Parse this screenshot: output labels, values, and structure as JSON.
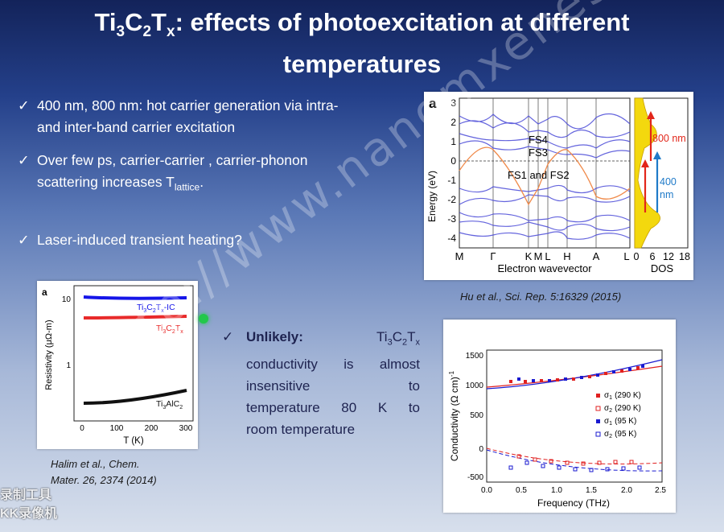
{
  "slide": {
    "title_prefix": "Ti",
    "title_sub1": "3",
    "title_c": "C",
    "title_sub2": "2",
    "title_t": "T",
    "title_sub3": "x",
    "title_rest": ": effects of photoexcitation at different",
    "title_line2": "temperatures"
  },
  "bullets": [
    {
      "check": "✓",
      "line1": "400 nm, 800 nm: hot carrier generation via intra-",
      "line2": "and inter-band carrier excitation"
    },
    {
      "check": "✓",
      "line1": "Over few ps, carrier-carrier , carrier-phonon",
      "line2": "scattering increases T",
      "line2_sub": "lattice",
      "line2_end": "."
    },
    {
      "check": "✓",
      "line1": "Laser-induced transient heating?"
    }
  ],
  "band_panel": {
    "label": "a",
    "y_ticks": [
      "3",
      "2",
      "1",
      "0",
      "-1",
      "-2",
      "-3",
      "-4"
    ],
    "y_label": "Energy (eV)",
    "x_ticks": [
      "M",
      "Γ",
      "K",
      "M",
      "L",
      "H",
      "A",
      "L"
    ],
    "x_label": "Electron wavevector",
    "annotations": [
      "FS4",
      "FS3",
      "FS1 and FS2"
    ],
    "dos_ticks": [
      "0",
      "6",
      "12",
      "18"
    ],
    "dos_label": "DOS",
    "arrow_800": "800 nm",
    "arrow_400a": "400",
    "arrow_400b": "nm",
    "citation": "Hu et al., Sci. Rep. 5:16329 (2015)"
  },
  "resistivity_panel": {
    "label": "a",
    "y_label": "Resistivity (μΩ-m)",
    "y_ticks": [
      "10",
      "1"
    ],
    "x_ticks": [
      "0",
      "100",
      "200",
      "300"
    ],
    "x_label": "T (K)",
    "labels": {
      "ic_a": "Ti",
      "ic_s1": "3",
      "ic_b": "C",
      "ic_s2": "2",
      "ic_c": "T",
      "ic_s3": "x",
      "ic_d": "-IC",
      "tc_a": "Ti",
      "tc_s1": "3",
      "tc_b": "C",
      "tc_s2": "2",
      "tc_c": "T",
      "tc_s3": "x",
      "al_a": "Ti",
      "al_s1": "3",
      "al_b": "AlC",
      "al_s2": "2"
    },
    "colors": {
      "ic": "#1515e8",
      "tc": "#e82a2a",
      "al": "#111111"
    },
    "citation_line1": "Halim et al., Chem.",
    "citation_line2": "Mater. 26, 2374 (2014)"
  },
  "unlikely": {
    "check": "✓",
    "bold": "Unlikely:",
    "f_a": "Ti",
    "f_s1": "3",
    "f_b": "C",
    "f_s2": "2",
    "f_c": "T",
    "f_s3": "x",
    "l2a": "conductivity",
    "l2b": "is",
    "l2c": "almost",
    "l3a": "insensitive",
    "l3b": "to",
    "l4a": "temperature",
    "l4b": "80",
    "l4c": "K",
    "l4d": "to",
    "l5": "room temperature"
  },
  "conductivity_panel": {
    "y_label": "Conductivity (Ω cm)",
    "y_label_sup": "-1",
    "y_ticks": [
      "1500",
      "1000",
      "500",
      "0",
      "-500"
    ],
    "x_ticks": [
      "0.0",
      "0.5",
      "1.0",
      "1.5",
      "2.0",
      "2.5"
    ],
    "x_label": "Frequency (THz)",
    "legend": [
      {
        "sym": "σ",
        "sub": "1",
        "text": "(290 K)",
        "color": "#e02020",
        "filled": true
      },
      {
        "sym": "σ",
        "sub": "2",
        "text": "(290 K)",
        "color": "#e02020",
        "filled": false
      },
      {
        "sym": "σ",
        "sub": "1",
        "text": "(95 K)",
        "color": "#1a1ad0",
        "filled": true
      },
      {
        "sym": "σ",
        "sub": "2",
        "text": "(95 K)",
        "color": "#1a1ad0",
        "filled": false
      }
    ]
  },
  "watermark": "http://www.nanomxenes.com",
  "corner_text_line1": "录制工具",
  "corner_text_line2": "KK录像机"
}
